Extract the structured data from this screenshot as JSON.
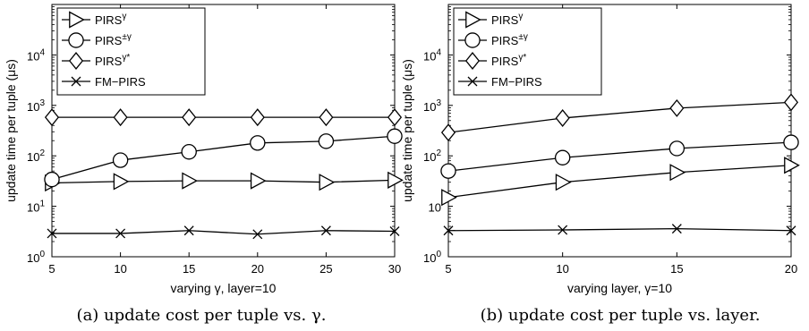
{
  "chart_data": [
    {
      "type": "line",
      "xlabel": "varying γ, layer=10",
      "ylabel": "update time per tuple (μs)",
      "caption": "(a) update cost per tuple vs.  γ.",
      "yscale": "log",
      "xlim": [
        5,
        30
      ],
      "ylim": [
        1,
        100000
      ],
      "x": [
        5,
        10,
        15,
        20,
        25,
        30
      ],
      "x_tick_labels": [
        "5",
        "10",
        "15",
        "20",
        "25",
        "30"
      ],
      "y_tick_labels": [
        {
          "base": "10",
          "exp": "0"
        },
        {
          "base": "10",
          "exp": "1"
        },
        {
          "base": "10",
          "exp": "2"
        },
        {
          "base": "10",
          "exp": "3"
        },
        {
          "base": "10",
          "exp": "4"
        }
      ],
      "legend_position": "top-left",
      "series": [
        {
          "name": "PIRS",
          "name_sup": "γ",
          "marker": "triangle-right",
          "values": [
            29,
            31,
            32,
            32,
            30,
            33
          ]
        },
        {
          "name": "PIRS",
          "name_sup": "±γ",
          "marker": "circle",
          "values": [
            34,
            82,
            120,
            180,
            195,
            245
          ]
        },
        {
          "name": "PIRS",
          "name_sup": "γ*",
          "marker": "diamond",
          "values": [
            580,
            580,
            580,
            580,
            580,
            580
          ]
        },
        {
          "name": "FM−PIRS",
          "name_sup": "",
          "marker": "x",
          "values": [
            2.9,
            2.9,
            3.3,
            2.8,
            3.3,
            3.2
          ]
        }
      ]
    },
    {
      "type": "line",
      "xlabel": "varying layer, γ=10",
      "ylabel": "update time per tuple (μs)",
      "caption": "(b) update cost per tuple vs. layer.",
      "yscale": "log",
      "xlim": [
        5,
        20
      ],
      "ylim": [
        1,
        100000
      ],
      "x": [
        5,
        10,
        15,
        20
      ],
      "x_tick_labels": [
        "5",
        "10",
        "15",
        "20"
      ],
      "y_tick_labels": [
        {
          "base": "10",
          "exp": "0"
        },
        {
          "base": "10",
          "exp": ""
        },
        {
          "base": "10",
          "exp": "2"
        },
        {
          "base": "10",
          "exp": "3"
        },
        {
          "base": "10",
          "exp": "4"
        }
      ],
      "legend_position": "top-left",
      "series": [
        {
          "name": "PIRS",
          "name_sup": "γ",
          "marker": "triangle-right",
          "values": [
            15,
            30,
            47,
            65
          ]
        },
        {
          "name": "PIRS",
          "name_sup": "±γ",
          "marker": "circle",
          "values": [
            50,
            92,
            140,
            185
          ]
        },
        {
          "name": "PIRS",
          "name_sup": "γ*",
          "marker": "diamond",
          "values": [
            290,
            560,
            880,
            1150
          ]
        },
        {
          "name": "FM−PIRS",
          "name_sup": "",
          "marker": "x",
          "values": [
            3.3,
            3.4,
            3.6,
            3.3
          ]
        }
      ]
    }
  ]
}
